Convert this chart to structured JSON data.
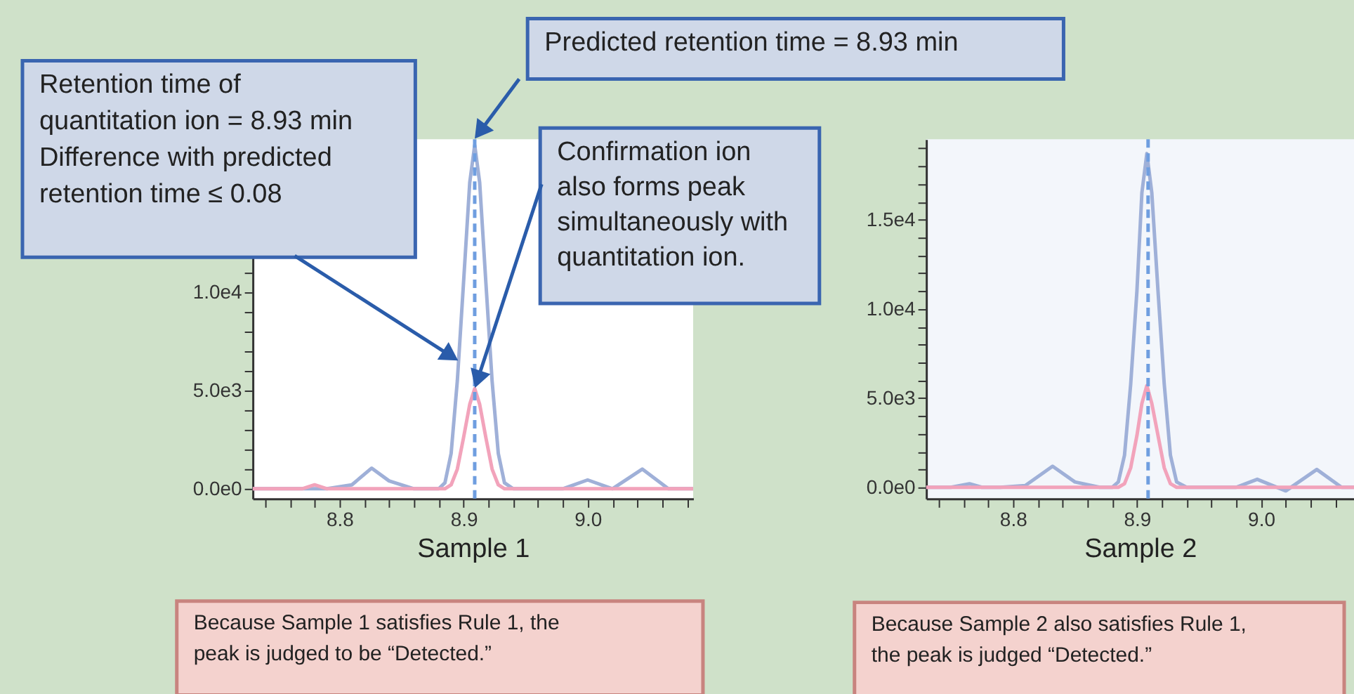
{
  "chart_data": [
    {
      "type": "line",
      "xlabel": "Sample 1",
      "x": [
        8.73,
        8.76,
        8.77,
        8.78,
        8.79,
        8.81,
        8.826,
        8.84,
        8.86,
        8.87,
        8.88,
        8.885,
        8.89,
        8.895,
        8.9,
        8.905,
        8.909,
        8.913,
        8.918,
        8.923,
        8.928,
        8.933,
        8.94,
        8.95,
        8.98,
        9.0,
        9.02,
        9.044,
        9.065,
        9.085
      ],
      "series": [
        {
          "color": "#9fb0d8",
          "values": [
            0,
            0,
            0,
            0,
            0,
            200,
            1050,
            400,
            0,
            0,
            0,
            300,
            1800,
            5500,
            10500,
            15600,
            17500,
            15600,
            10500,
            5500,
            1800,
            300,
            0,
            0,
            0,
            450,
            0,
            1000,
            0,
            0
          ]
        },
        {
          "color": "#f2a3bb",
          "values": [
            0,
            0,
            0,
            200,
            0,
            0,
            0,
            0,
            0,
            0,
            0,
            0,
            200,
            1000,
            2600,
            4300,
            5100,
            4300,
            2600,
            1000,
            200,
            0,
            0,
            0,
            0,
            0,
            0,
            0,
            0,
            0
          ]
        }
      ],
      "xlim": [
        8.73,
        9.085
      ],
      "ylim": [
        -500,
        17800
      ],
      "xticks": [
        {
          "value": 8.74,
          "label": null
        },
        {
          "value": 8.76,
          "label": null
        },
        {
          "value": 8.78,
          "label": null
        },
        {
          "value": 8.8,
          "label": "8.8"
        },
        {
          "value": 8.82,
          "label": null
        },
        {
          "value": 8.84,
          "label": null
        },
        {
          "value": 8.86,
          "label": null
        },
        {
          "value": 8.88,
          "label": null
        },
        {
          "value": 8.9,
          "label": "8.9"
        },
        {
          "value": 8.92,
          "label": null
        },
        {
          "value": 8.94,
          "label": null
        },
        {
          "value": 8.96,
          "label": null
        },
        {
          "value": 8.98,
          "label": null
        },
        {
          "value": 9.0,
          "label": "9.0"
        },
        {
          "value": 9.02,
          "label": null
        },
        {
          "value": 9.04,
          "label": null
        },
        {
          "value": 9.06,
          "label": null
        },
        {
          "value": 9.08,
          "label": null
        }
      ],
      "yticks": [
        {
          "value": 0,
          "label": "0.0e0"
        },
        {
          "value": 1000,
          "label": null
        },
        {
          "value": 2000,
          "label": null
        },
        {
          "value": 3000,
          "label": null
        },
        {
          "value": 4000,
          "label": null
        },
        {
          "value": 5000,
          "label": "5.0e3"
        },
        {
          "value": 6000,
          "label": null
        },
        {
          "value": 7000,
          "label": null
        },
        {
          "value": 8000,
          "label": null
        },
        {
          "value": 9000,
          "label": null
        },
        {
          "value": 10000,
          "label": "1.0e4"
        },
        {
          "value": 11000,
          "label": null
        },
        {
          "value": 12000,
          "label": null
        },
        {
          "value": 13000,
          "label": null
        },
        {
          "value": 14000,
          "label": null
        },
        {
          "value": 15000,
          "label": null
        },
        {
          "value": 16000,
          "label": null
        },
        {
          "value": 17000,
          "label": null
        }
      ],
      "ref_lines": [
        {
          "axis": "x",
          "value": 8.909,
          "color": "#6f9ee0",
          "line_style": "dashed"
        }
      ],
      "annotations": [
        "Predicted retention time = 8.93 min",
        "Retention time of quantitation ion = 8.93 min\nDifference with predicted retention time ≤ 0.08",
        {
          "text": "Confirmation ion also forms peak simultaneously with quantitation ion.",
          "x": 8.909,
          "y": 5100
        },
        "Because Sample 1 satisfies Rule 1, the peak is judged to be “Detected.”"
      ],
      "grid": false,
      "legend": false,
      "marker": "none",
      "line_style": "solid"
    },
    {
      "type": "line",
      "xlabel": "Sample 2",
      "x": [
        8.73,
        8.75,
        8.765,
        8.775,
        8.79,
        8.81,
        8.832,
        8.85,
        8.87,
        8.88,
        8.885,
        8.89,
        8.895,
        8.9,
        8.904,
        8.908,
        8.912,
        8.917,
        8.922,
        8.927,
        8.932,
        8.94,
        8.96,
        8.98,
        8.997,
        9.02,
        9.045,
        9.065,
        9.075
      ],
      "series": [
        {
          "color": "#9fb0d8",
          "values": [
            0,
            0,
            200,
            0,
            0,
            100,
            1180,
            300,
            0,
            0,
            300,
            1800,
            5800,
            11000,
            16500,
            18700,
            16500,
            11000,
            5800,
            1800,
            300,
            0,
            0,
            0,
            450,
            -200,
            1000,
            0,
            0
          ]
        },
        {
          "color": "#f2a3bb",
          "values": [
            0,
            0,
            0,
            0,
            0,
            0,
            0,
            0,
            0,
            0,
            0,
            200,
            1100,
            2900,
            4700,
            5700,
            4700,
            2900,
            1100,
            200,
            0,
            0,
            0,
            0,
            0,
            0,
            0,
            0,
            0
          ]
        }
      ],
      "xlim": [
        8.73,
        9.075
      ],
      "ylim": [
        -630,
        19500
      ],
      "xticks": [
        {
          "value": 8.74,
          "label": null
        },
        {
          "value": 8.76,
          "label": null
        },
        {
          "value": 8.78,
          "label": null
        },
        {
          "value": 8.8,
          "label": "8.8"
        },
        {
          "value": 8.82,
          "label": null
        },
        {
          "value": 8.84,
          "label": null
        },
        {
          "value": 8.86,
          "label": null
        },
        {
          "value": 8.88,
          "label": null
        },
        {
          "value": 8.9,
          "label": "8.9"
        },
        {
          "value": 8.92,
          "label": null
        },
        {
          "value": 8.94,
          "label": null
        },
        {
          "value": 8.96,
          "label": null
        },
        {
          "value": 8.98,
          "label": null
        },
        {
          "value": 9.0,
          "label": "9.0"
        },
        {
          "value": 9.02,
          "label": null
        },
        {
          "value": 9.04,
          "label": null
        },
        {
          "value": 9.06,
          "label": null
        }
      ],
      "yticks": [
        {
          "value": 0,
          "label": "0.0e0"
        },
        {
          "value": 1000,
          "label": null
        },
        {
          "value": 2000,
          "label": null
        },
        {
          "value": 3000,
          "label": null
        },
        {
          "value": 4000,
          "label": null
        },
        {
          "value": 5000,
          "label": "5.0e3"
        },
        {
          "value": 6000,
          "label": null
        },
        {
          "value": 7000,
          "label": null
        },
        {
          "value": 8000,
          "label": null
        },
        {
          "value": 9000,
          "label": null
        },
        {
          "value": 10000,
          "label": "1.0e4"
        },
        {
          "value": 11000,
          "label": null
        },
        {
          "value": 12000,
          "label": null
        },
        {
          "value": 13000,
          "label": null
        },
        {
          "value": 14000,
          "label": null
        },
        {
          "value": 15000,
          "label": "1.5e4"
        },
        {
          "value": 16000,
          "label": null
        },
        {
          "value": 17000,
          "label": null
        },
        {
          "value": 18000,
          "label": null
        },
        {
          "value": 19000,
          "label": null
        }
      ],
      "ref_lines": [
        {
          "axis": "x",
          "value": 8.909,
          "color": "#6f9ee0",
          "line_style": "dashed"
        }
      ],
      "annotations": [
        "Because Sample 2 also satisfies Rule 1, the peak is judged “Detected.”"
      ],
      "grid": false,
      "legend": false,
      "marker": "none",
      "line_style": "solid"
    }
  ]
}
